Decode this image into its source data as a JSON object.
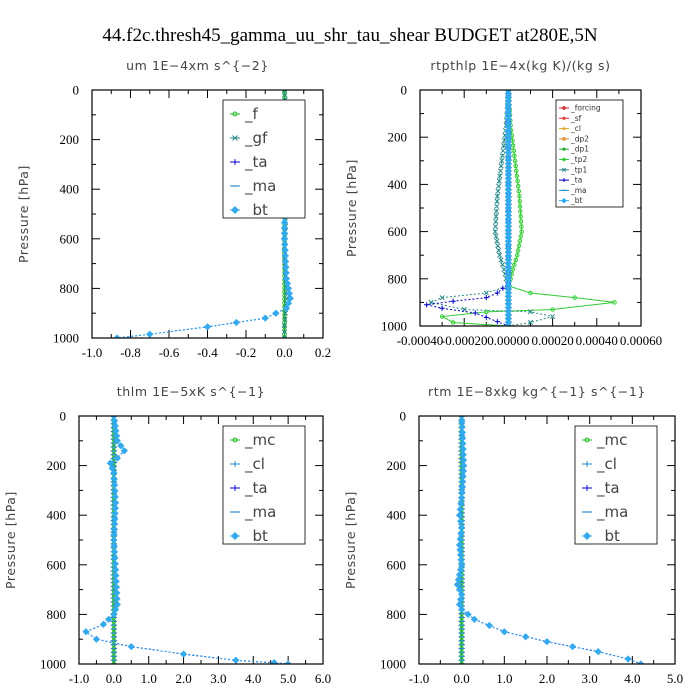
{
  "title": "44.f2c.thresh45_gamma_uu_shr_tau_shear  BUDGET at280E,5N",
  "chart_data": [
    {
      "type": "line",
      "title": "um   1E−4xm s^{−2}",
      "ylabel": "Pressure [hPa]",
      "xlim": [
        -1.0,
        0.2
      ],
      "ylim": [
        1000,
        0
      ],
      "xticks": [
        "-1.0",
        "-0.8",
        "-0.6",
        "-0.4",
        "-0.2",
        "0.0",
        "0.2"
      ],
      "yticks": [
        "0",
        "200",
        "400",
        "600",
        "800",
        "1000"
      ],
      "legend_style": "big",
      "legend_location": "top-right",
      "series": [
        {
          "name": "_f",
          "color": "#22bb22",
          "marker": "circle",
          "x": [
            0,
            0,
            0,
            0,
            0
          ],
          "y": [
            0,
            250,
            500,
            750,
            1000
          ]
        },
        {
          "name": "_gf",
          "color": "#2a8a8a",
          "marker": "x",
          "x": [
            0.0,
            0.005,
            0.01,
            0.0,
            0.005,
            0.0,
            0.0,
            0.005,
            0.0,
            0.005,
            0.01,
            0.01,
            0.005,
            0.0,
            0.0
          ],
          "y": [
            0,
            60,
            130,
            200,
            260,
            350,
            450,
            550,
            650,
            750,
            820,
            860,
            900,
            950,
            1000
          ]
        },
        {
          "name": "_ta",
          "color": "#0000cc",
          "marker": "plus",
          "x": [
            0.0,
            0.02,
            0.01,
            0.0,
            0.0,
            0.01,
            0.02,
            0.03,
            0.01,
            -0.1,
            -0.4,
            -0.7,
            -0.87
          ],
          "y": [
            120,
            140,
            180,
            250,
            600,
            760,
            800,
            840,
            880,
            920,
            955,
            985,
            1000
          ]
        },
        {
          "name": "_ma",
          "color": "#2a8acc",
          "marker": "dash",
          "x": [
            0.0,
            0.02,
            0.01,
            0.0,
            0.0,
            0.01,
            0.02,
            0.03,
            0.01,
            -0.1,
            -0.4,
            -0.7,
            -0.87
          ],
          "y": [
            120,
            140,
            180,
            250,
            600,
            760,
            800,
            840,
            880,
            920,
            955,
            985,
            1000
          ]
        },
        {
          "name": "_bt",
          "color": "#33aaee",
          "marker": "diamond",
          "x": [
            0.0,
            0.02,
            0.01,
            0.0,
            0.0,
            0.01,
            0.02,
            0.03,
            0.01,
            -0.1,
            -0.4,
            -0.7,
            -0.87
          ],
          "y": [
            120,
            140,
            180,
            250,
            600,
            760,
            800,
            840,
            880,
            920,
            955,
            985,
            1000
          ]
        }
      ]
    },
    {
      "type": "line",
      "title": "rtpthlp   1E−4x(kg K)/(kg s)",
      "ylabel": "Pressure [hPa]",
      "xlim": [
        -0.0004,
        0.0006
      ],
      "ylim": [
        1000,
        0
      ],
      "xticks": [
        "-0.00040",
        "-0.00020",
        "0.00000",
        "0.00020",
        "0.00040",
        "0.00060"
      ],
      "yticks": [
        "0",
        "200",
        "400",
        "600",
        "800",
        "1000"
      ],
      "legend_style": "small",
      "legend_location": "top-right",
      "series": [
        {
          "name": "_forcing",
          "color": "#cc2222",
          "marker": "circle",
          "x": [
            0,
            0,
            0,
            0,
            0
          ],
          "y": [
            0,
            250,
            500,
            750,
            1000
          ]
        },
        {
          "name": "_sf",
          "color": "#dd3333",
          "marker": "star",
          "x": [
            0,
            0,
            0,
            0,
            0
          ],
          "y": [
            0,
            250,
            500,
            750,
            1000
          ]
        },
        {
          "name": "_cl",
          "color": "#ddaa22",
          "marker": "star",
          "x": [
            0,
            0,
            0,
            0,
            0
          ],
          "y": [
            0,
            250,
            500,
            750,
            1000
          ]
        },
        {
          "name": "_dp2",
          "color": "#dd8822",
          "marker": "circle",
          "x": [
            0,
            0,
            0,
            0,
            0
          ],
          "y": [
            0,
            250,
            500,
            750,
            1000
          ]
        },
        {
          "name": "_dp1",
          "color": "#22aa22",
          "marker": "square",
          "x": [
            0,
            0,
            0,
            0,
            0
          ],
          "y": [
            0,
            250,
            500,
            750,
            1000
          ]
        },
        {
          "name": "_tp2",
          "color": "#33cc33",
          "marker": "circle",
          "x": [
            0.0,
            1e-05,
            3e-05,
            5e-05,
            6e-05,
            4e-05,
            2e-05,
            1e-05,
            0.0,
            0.0001,
            0.0003,
            0.00048,
            0.0002,
            -0.0001,
            -0.0003,
            -0.00025,
            0.0
          ],
          "y": [
            0,
            150,
            300,
            450,
            600,
            700,
            760,
            800,
            830,
            860,
            880,
            900,
            930,
            940,
            960,
            985,
            1000
          ]
        },
        {
          "name": "_tp1",
          "color": "#2a8a8a",
          "marker": "x",
          "x": [
            0.0,
            -1e-05,
            -3e-05,
            -5e-05,
            -6e-05,
            -4e-05,
            -2e-05,
            -1e-05,
            0.0,
            -0.0001,
            -0.0003,
            -0.00035,
            -0.0002,
            0.0001,
            0.0002,
            0.0001,
            0.0
          ],
          "y": [
            0,
            150,
            300,
            450,
            600,
            700,
            760,
            800,
            830,
            860,
            880,
            900,
            930,
            940,
            960,
            985,
            1000
          ]
        },
        {
          "name": "_ta",
          "color": "#0000cc",
          "marker": "plus",
          "x": [
            0.0,
            0.0,
            -5e-05,
            -0.0001,
            -0.00025,
            -0.00037,
            -0.0003,
            -0.00015,
            0.0
          ],
          "y": [
            0,
            820,
            860,
            880,
            895,
            910,
            925,
            945,
            1000
          ]
        },
        {
          "name": "_ma",
          "color": "#2a8acc",
          "marker": "dash",
          "x": [
            0,
            0,
            0,
            0,
            0
          ],
          "y": [
            0,
            250,
            500,
            750,
            1000
          ]
        },
        {
          "name": "_bt",
          "color": "#33aaee",
          "marker": "diamond",
          "x": [
            0,
            0,
            0,
            0,
            0
          ],
          "y": [
            0,
            250,
            500,
            750,
            1000
          ]
        }
      ]
    },
    {
      "type": "line",
      "title": "thlm   1E−5xK  s^{−1}",
      "ylabel": "Pressure [hPa]",
      "xlim": [
        -1.0,
        6.0
      ],
      "ylim": [
        1000,
        0
      ],
      "xticks": [
        "-1.0",
        "0.0",
        "1.0",
        "2.0",
        "3.0",
        "4.0",
        "5.0",
        "6.0"
      ],
      "yticks": [
        "0",
        "200",
        "400",
        "600",
        "800",
        "1000"
      ],
      "legend_style": "big",
      "legend_location": "top-right",
      "series": [
        {
          "name": "_mc",
          "color": "#22bb22",
          "marker": "circle",
          "x": [
            0,
            0,
            0,
            0,
            0
          ],
          "y": [
            0,
            250,
            500,
            750,
            1000
          ]
        },
        {
          "name": "_cl",
          "color": "#2a8acc",
          "marker": "plus",
          "x": [
            0.0,
            0.1,
            0.3,
            0.1,
            -0.1,
            0.0,
            0.05,
            0.0,
            0.05,
            0.1,
            0.0,
            -0.3,
            -0.8,
            -0.5,
            0.5,
            2.0,
            3.5,
            4.6,
            5.0
          ],
          "y": [
            0,
            100,
            140,
            170,
            190,
            230,
            350,
            500,
            620,
            760,
            800,
            840,
            870,
            900,
            930,
            960,
            985,
            995,
            1000
          ]
        },
        {
          "name": "_ta",
          "color": "#0000cc",
          "marker": "plus",
          "x": [
            0.0,
            0.1,
            0.3,
            0.1,
            -0.1,
            0.0,
            0.05,
            0.0,
            0.05,
            0.1,
            0.0,
            -0.3,
            -0.8,
            -0.5,
            0.5,
            2.0,
            3.5,
            4.6,
            5.0
          ],
          "y": [
            0,
            100,
            140,
            170,
            190,
            230,
            350,
            500,
            620,
            760,
            800,
            840,
            870,
            900,
            930,
            960,
            985,
            995,
            1000
          ]
        },
        {
          "name": "_ma",
          "color": "#2a8acc",
          "marker": "dash",
          "x": [
            0,
            0,
            0,
            0,
            0
          ],
          "y": [
            0,
            250,
            500,
            750,
            1000
          ]
        },
        {
          "name": "_bt",
          "color": "#33aaee",
          "marker": "diamond",
          "x": [
            0.0,
            0.1,
            0.3,
            0.1,
            -0.1,
            0.0,
            0.05,
            0.0,
            0.05,
            0.1,
            0.0,
            -0.3,
            -0.8,
            -0.5,
            0.5,
            2.0,
            3.5,
            4.6,
            5.0
          ],
          "y": [
            0,
            100,
            140,
            170,
            190,
            230,
            350,
            500,
            620,
            760,
            800,
            840,
            870,
            900,
            930,
            960,
            985,
            995,
            1000
          ]
        }
      ]
    },
    {
      "type": "line",
      "title": "rtm   1E−8xkg kg^{−1} s^{−1}",
      "ylabel": "Pressure [hPa]",
      "xlim": [
        -1.0,
        5.0
      ],
      "ylim": [
        1000,
        0
      ],
      "xticks": [
        "-1.0",
        "0.0",
        "1.0",
        "2.0",
        "3.0",
        "4.0",
        "5.0"
      ],
      "yticks": [
        "0",
        "200",
        "400",
        "600",
        "800",
        "1000"
      ],
      "legend_style": "big",
      "legend_location": "top-right",
      "series": [
        {
          "name": "_mc",
          "color": "#22bb22",
          "marker": "circle",
          "x": [
            0,
            0,
            0,
            0,
            0
          ],
          "y": [
            0,
            250,
            500,
            750,
            1000
          ]
        },
        {
          "name": "_cl",
          "color": "#2a8acc",
          "marker": "plus",
          "x": [
            0.0,
            0.05,
            0.0,
            -0.05,
            0.0,
            -0.05,
            0.0,
            -0.1,
            0.0,
            -0.05,
            0.0,
            0.3,
            1.0,
            2.0,
            3.2,
            3.9,
            4.2
          ],
          "y": [
            0,
            200,
            330,
            400,
            450,
            520,
            600,
            680,
            720,
            760,
            780,
            820,
            870,
            910,
            950,
            980,
            1000
          ]
        },
        {
          "name": "_ta",
          "color": "#0000cc",
          "marker": "plus",
          "x": [
            0.0,
            0.05,
            0.0,
            -0.05,
            0.0,
            -0.05,
            0.0,
            -0.1,
            0.0,
            -0.05,
            0.0,
            0.3,
            1.0,
            2.0,
            3.2,
            3.9,
            4.2
          ],
          "y": [
            0,
            200,
            330,
            400,
            450,
            520,
            600,
            680,
            720,
            760,
            780,
            820,
            870,
            910,
            950,
            980,
            1000
          ]
        },
        {
          "name": "_ma",
          "color": "#2a8acc",
          "marker": "dash",
          "x": [
            0,
            0,
            0,
            0,
            0
          ],
          "y": [
            0,
            250,
            500,
            750,
            1000
          ]
        },
        {
          "name": "_bt",
          "color": "#33aaee",
          "marker": "diamond",
          "x": [
            0.0,
            0.05,
            0.0,
            -0.05,
            0.0,
            -0.05,
            0.0,
            -0.1,
            0.0,
            -0.05,
            0.0,
            0.3,
            1.0,
            2.0,
            3.2,
            3.9,
            4.2
          ],
          "y": [
            0,
            200,
            330,
            400,
            450,
            520,
            600,
            680,
            720,
            760,
            780,
            820,
            870,
            910,
            950,
            980,
            1000
          ]
        }
      ]
    }
  ]
}
